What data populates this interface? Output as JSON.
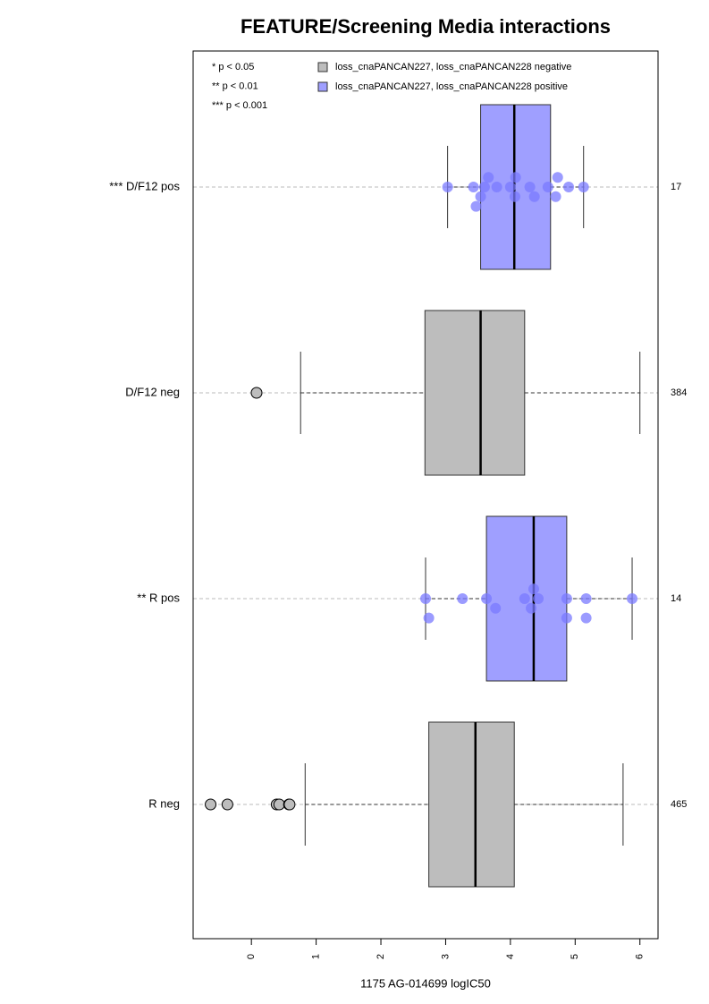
{
  "chart_data": {
    "type": "boxplot",
    "title": "FEATURE/Screening Media interactions",
    "xlabel": "1175 AG-014699 logIC50",
    "significance_legend": [
      "* p < 0.05",
      "** p < 0.01",
      "*** p < 0.001"
    ],
    "series": [
      {
        "name": "loss_cnaPANCAN227, loss_cnaPANCAN228 negative",
        "color": "#bdbdbd"
      },
      {
        "name": "loss_cnaPANCAN227, loss_cnaPANCAN228 positive",
        "color": "#9f9fff"
      }
    ],
    "groups": [
      {
        "label": "*** D/F12 pos",
        "count": 17,
        "series": 1,
        "whislo": 3.03,
        "q1": 3.54,
        "median": 4.06,
        "q3": 4.62,
        "whishi": 5.13,
        "outliers": [],
        "points": [
          3.03,
          3.43,
          3.47,
          3.54,
          3.6,
          3.66,
          3.79,
          4.0,
          4.07,
          4.08,
          4.3,
          4.37,
          4.58,
          4.7,
          4.73,
          4.9,
          5.13
        ]
      },
      {
        "label": "D/F12 neg",
        "count": 384,
        "series": 0,
        "whislo": 0.76,
        "q1": 2.68,
        "median": 3.54,
        "q3": 4.22,
        "whishi": 6.0,
        "outliers": [
          0.08
        ],
        "points": []
      },
      {
        "label": "** R pos",
        "count": 14,
        "series": 1,
        "whislo": 2.69,
        "q1": 3.63,
        "median": 4.36,
        "q3": 4.87,
        "whishi": 5.88,
        "outliers": [],
        "points": [
          2.69,
          2.74,
          3.26,
          3.63,
          3.77,
          4.22,
          4.32,
          4.36,
          4.43,
          4.87,
          4.87,
          5.17,
          5.17,
          5.88
        ]
      },
      {
        "label": "R neg",
        "count": 465,
        "series": 0,
        "whislo": 0.83,
        "q1": 2.74,
        "median": 3.46,
        "q3": 4.06,
        "whishi": 5.74,
        "outliers": [
          -0.63,
          -0.37,
          0.39,
          0.43,
          0.58,
          0.59
        ],
        "points": []
      }
    ],
    "xlim": [
      -0.9,
      6.28
    ],
    "xticks": [
      0,
      1,
      2,
      3,
      4,
      5,
      6
    ],
    "grid": true
  }
}
